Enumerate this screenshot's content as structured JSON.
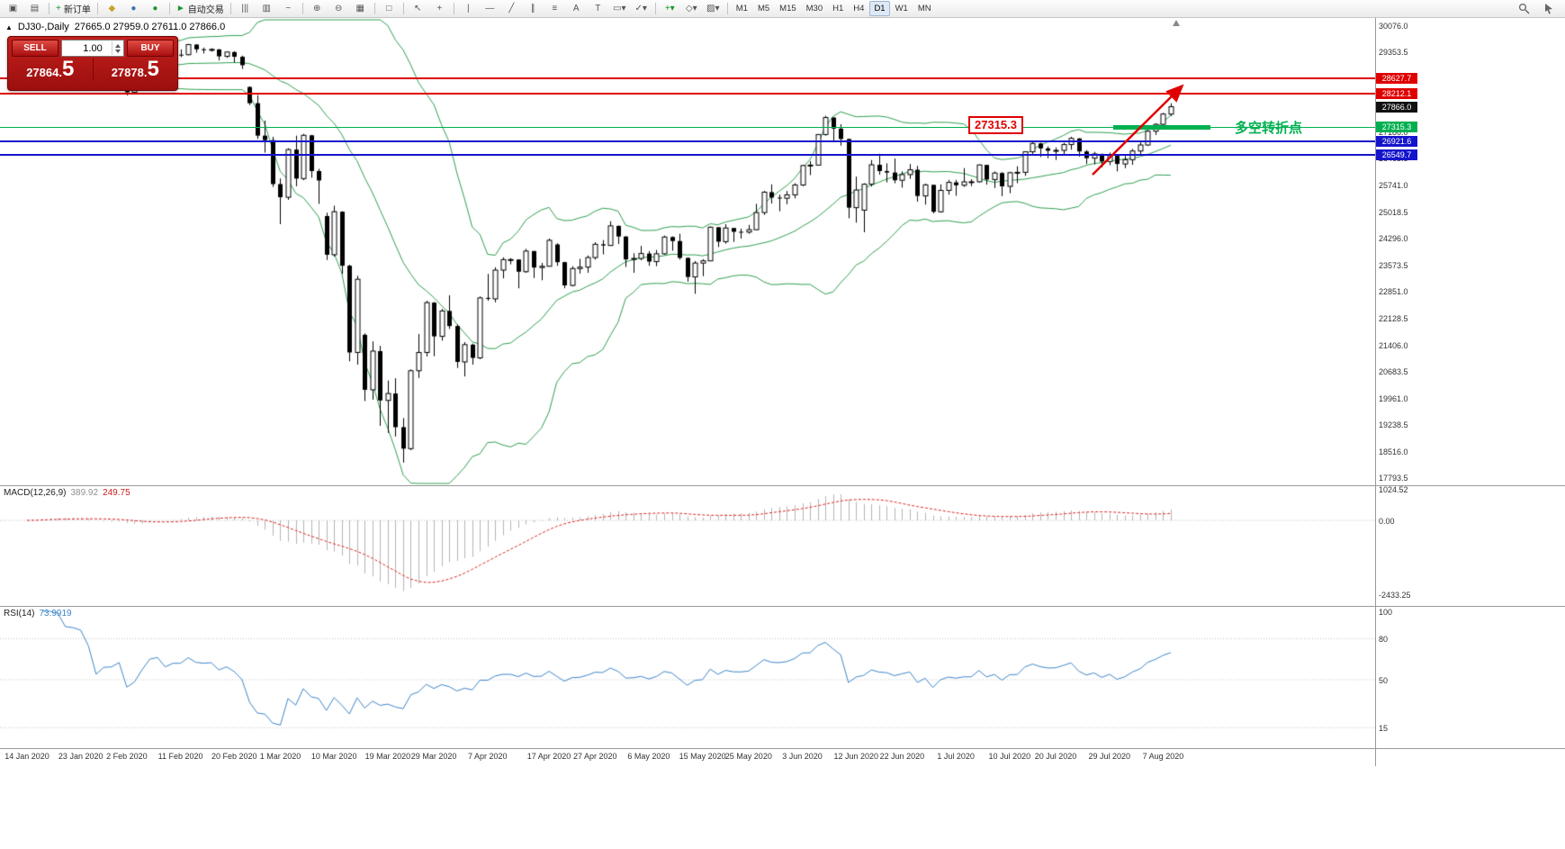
{
  "toolbar": {
    "buttons": [
      {
        "name": "new-chart-icon",
        "glyph": "▣"
      },
      {
        "name": "chart-profiles-icon",
        "glyph": "▤"
      },
      {
        "sep": true
      },
      {
        "name": "new-order-button",
        "glyph": "+",
        "label": "新订单",
        "color": "#18962b"
      },
      {
        "sep": true
      },
      {
        "name": "metaeditor-icon",
        "glyph": "◆",
        "color": "#c9a227"
      },
      {
        "name": "history-center-icon",
        "glyph": "●",
        "color": "#3b6fb5"
      },
      {
        "name": "community-icon",
        "glyph": "●",
        "color": "#18962b"
      },
      {
        "sep": true
      },
      {
        "name": "auto-trading-button",
        "glyph": "►",
        "label": "自动交易",
        "color": "#18962b"
      },
      {
        "sep": true
      },
      {
        "name": "bar-chart-icon",
        "glyph": "|||"
      },
      {
        "name": "candlestick-chart-icon",
        "glyph": "▥"
      },
      {
        "name": "line-chart-icon",
        "glyph": "~"
      },
      {
        "sep": true
      },
      {
        "name": "zoom-in-icon",
        "glyph": "⊕"
      },
      {
        "name": "zoom-out-icon",
        "glyph": "⊖"
      },
      {
        "name": "grid-icon",
        "glyph": "▦"
      },
      {
        "sep": true
      },
      {
        "name": "tile-windows-icon",
        "glyph": "□"
      },
      {
        "sep": true
      },
      {
        "name": "cursor-icon",
        "glyph": "↖"
      },
      {
        "name": "crosshair-icon",
        "glyph": "+"
      },
      {
        "sep": true
      },
      {
        "name": "vertical-line-icon",
        "glyph": "|"
      },
      {
        "name": "horizontal-line-icon",
        "glyph": "—"
      },
      {
        "name": "trendline-icon",
        "glyph": "╱"
      },
      {
        "name": "equidistant-channel-icon",
        "glyph": "∥"
      },
      {
        "name": "fibonacci-icon",
        "glyph": "≡"
      },
      {
        "name": "text-icon",
        "glyph": "A"
      },
      {
        "name": "text-label-icon",
        "glyph": "T"
      },
      {
        "name": "shapes-dropdown-icon",
        "glyph": "▭▾"
      },
      {
        "name": "arrows-dropdown-icon",
        "glyph": "✓▾"
      },
      {
        "sep": true
      },
      {
        "name": "indicators-dropdown-icon",
        "glyph": "+▾",
        "color": "#18962b"
      },
      {
        "name": "periods-dropdown-icon",
        "glyph": "◇▾"
      },
      {
        "name": "templates-dropdown-icon",
        "glyph": "▨▾"
      }
    ],
    "timeframes": [
      "M1",
      "M5",
      "M15",
      "M30",
      "H1",
      "H4",
      "D1",
      "W1",
      "MN"
    ],
    "active_timeframe": "D1"
  },
  "chart_header": {
    "collapse_arrow": "▲",
    "symbol_period": "DJ30-,Daily",
    "ohlc_text": "27665.0 27959.0 27611.0 27866.0"
  },
  "trade_panel": {
    "sell_label": "SELL",
    "buy_label": "BUY",
    "volume": "1.00",
    "sell_price_small": "27864.",
    "sell_price_big": "5",
    "buy_price_small": "27878.",
    "buy_price_big": "5"
  },
  "price_axis_labels": [
    "30076.0",
    "29353.5",
    "28631.0",
    "27908.5",
    "27186.0",
    "26463.5",
    "25741.0",
    "25018.5",
    "24296.0",
    "23573.5",
    "22851.0",
    "22128.5",
    "21406.0",
    "20683.5",
    "19961.0",
    "19238.5",
    "18516.0",
    "17793.5"
  ],
  "hlines": [
    {
      "price": 28627.7,
      "label": "28627.7",
      "color": "#e00000",
      "thickness": 2
    },
    {
      "price": 28212.1,
      "label": "28212.1",
      "color": "#e00000",
      "thickness": 2
    },
    {
      "price": 27866.0,
      "label": "27866.0",
      "color": "#111111",
      "thickness": 0
    },
    {
      "price": 27315.3,
      "label": "27315.3",
      "color": "#00b050",
      "thickness": 1
    },
    {
      "price": 26921.6,
      "label": "26921.6",
      "color": "#1515cc",
      "thickness": 2
    },
    {
      "price": 26549.7,
      "label": "26549.7",
      "color": "#1515cc",
      "thickness": 2
    }
  ],
  "pivot": {
    "label": "27315.3",
    "note": "多空转折点"
  },
  "macd": {
    "name": "MACD(12,26,9)",
    "value_main": "389.92",
    "value_signal": "249.75",
    "scale": [
      {
        "t": "1024.52",
        "v": 1024.52
      },
      {
        "t": "0.00",
        "v": 0
      },
      {
        "t": "-2433.25",
        "v": -2433.25
      }
    ]
  },
  "rsi": {
    "name": "RSI(14)",
    "value": "73.9919",
    "scale": [
      {
        "t": "100",
        "v": 100
      },
      {
        "t": "80",
        "v": 80
      },
      {
        "t": "50",
        "v": 50
      },
      {
        "t": "15",
        "v": 15
      }
    ],
    "levels": [
      80,
      50,
      15
    ]
  },
  "date_axis": [
    {
      "label": "14 Jan 2020",
      "idx": 0
    },
    {
      "label": "23 Jan 2020",
      "idx": 7
    },
    {
      "label": "2 Feb 2020",
      "idx": 13
    },
    {
      "label": "11 Feb 2020",
      "idx": 20
    },
    {
      "label": "20 Feb 2020",
      "idx": 27
    },
    {
      "label": "1 Mar 2020",
      "idx": 33
    },
    {
      "label": "10 Mar 2020",
      "idx": 40
    },
    {
      "label": "19 Mar 2020",
      "idx": 47
    },
    {
      "label": "29 Mar 2020",
      "idx": 53
    },
    {
      "label": "7 Apr 2020",
      "idx": 60
    },
    {
      "label": "17 Apr 2020",
      "idx": 68
    },
    {
      "label": "27 Apr 2020",
      "idx": 74
    },
    {
      "label": "6 May 2020",
      "idx": 81
    },
    {
      "label": "15 May 2020",
      "idx": 88
    },
    {
      "label": "25 May 2020",
      "idx": 94
    },
    {
      "label": "3 Jun 2020",
      "idx": 101
    },
    {
      "label": "12 Jun 2020",
      "idx": 108
    },
    {
      "label": "22 Jun 2020",
      "idx": 114
    },
    {
      "label": "1 Jul 2020",
      "idx": 121
    },
    {
      "label": "10 Jul 2020",
      "idx": 128
    },
    {
      "label": "20 Jul 2020",
      "idx": 134
    },
    {
      "label": "29 Jul 2020",
      "idx": 141
    },
    {
      "label": "7 Aug 2020",
      "idx": 148
    }
  ],
  "chart_data": {
    "type": "candlestick",
    "symbol": "DJ30-",
    "timeframe": "Daily",
    "y_axis_range": [
      17793.5,
      30076.0
    ],
    "last_bar": {
      "open": 27665.0,
      "high": 27959.0,
      "low": 27611.0,
      "close": 27866.0
    },
    "overlays": [
      {
        "name": "Bollinger Bands",
        "period": 20,
        "deviation": 2,
        "color": "#2e9e4f"
      }
    ],
    "indicators": [
      {
        "name": "MACD",
        "params": [
          12,
          26,
          9
        ],
        "values": [
          389.92,
          249.75
        ],
        "range": [
          -2433.25,
          1024.52
        ]
      },
      {
        "name": "RSI",
        "params": [
          14
        ],
        "value": 73.9919,
        "range": [
          0,
          100
        ]
      }
    ],
    "ohlc": [
      [
        28890,
        28985,
        28830,
        28940
      ],
      [
        28940,
        29070,
        28900,
        29030
      ],
      [
        29030,
        29320,
        29010,
        29297
      ],
      [
        29297,
        29380,
        29250,
        29348
      ],
      [
        29348,
        29370,
        29280,
        29330
      ],
      [
        29330,
        29340,
        29130,
        29196
      ],
      [
        29196,
        29250,
        29120,
        29186
      ],
      [
        29186,
        29230,
        28960,
        29160
      ],
      [
        29160,
        29190,
        28860,
        28990
      ],
      [
        28720,
        28750,
        28410,
        28536
      ],
      [
        28536,
        28780,
        28500,
        28723
      ],
      [
        28723,
        28850,
        28650,
        28734
      ],
      [
        28734,
        28890,
        28680,
        28859
      ],
      [
        28859,
        28870,
        28170,
        28256
      ],
      [
        28256,
        28580,
        28200,
        28400
      ],
      [
        28400,
        28860,
        28370,
        28808
      ],
      [
        28808,
        29310,
        28800,
        29291
      ],
      [
        29291,
        29410,
        29230,
        29380
      ],
      [
        29380,
        29390,
        29060,
        29103
      ],
      [
        29103,
        29290,
        29080,
        29277
      ],
      [
        29277,
        29420,
        29210,
        29276
      ],
      [
        29276,
        29568,
        29260,
        29551
      ],
      [
        29551,
        29560,
        29330,
        29423
      ],
      [
        29423,
        29470,
        29310,
        29398
      ],
      [
        29398,
        29450,
        29360,
        29420
      ],
      [
        29420,
        29430,
        29120,
        29232
      ],
      [
        29232,
        29360,
        29190,
        29348
      ],
      [
        29348,
        29370,
        29060,
        29220
      ],
      [
        29220,
        29250,
        28890,
        28992
      ],
      [
        28400,
        28420,
        27910,
        27961
      ],
      [
        27961,
        28180,
        26990,
        27081
      ],
      [
        27081,
        27490,
        26620,
        26958
      ],
      [
        26958,
        27050,
        25690,
        25767
      ],
      [
        25767,
        25920,
        24680,
        25410
      ],
      [
        25410,
        26740,
        25340,
        26703
      ],
      [
        26703,
        27080,
        25710,
        25917
      ],
      [
        25917,
        27130,
        25870,
        27090
      ],
      [
        27090,
        27100,
        25940,
        26121
      ],
      [
        26121,
        26180,
        25230,
        25865
      ],
      [
        24900,
        24990,
        23710,
        23851
      ],
      [
        23851,
        25180,
        23800,
        25018
      ],
      [
        25018,
        25030,
        23330,
        23553
      ],
      [
        23553,
        23580,
        20960,
        21201
      ],
      [
        21201,
        23280,
        20870,
        23186
      ],
      [
        21680,
        21720,
        19880,
        20188
      ],
      [
        20188,
        21500,
        19920,
        21237
      ],
      [
        21237,
        21380,
        19210,
        19899
      ],
      [
        19899,
        20440,
        19020,
        20087
      ],
      [
        20087,
        20500,
        18920,
        19174
      ],
      [
        19174,
        19420,
        18213,
        18592
      ],
      [
        18592,
        20740,
        18550,
        20705
      ],
      [
        20705,
        21700,
        20510,
        21200
      ],
      [
        21200,
        22600,
        21090,
        22552
      ],
      [
        22552,
        22570,
        21100,
        21637
      ],
      [
        21637,
        22380,
        21520,
        22327
      ],
      [
        22327,
        22750,
        21840,
        21917
      ],
      [
        21917,
        21960,
        20780,
        20944
      ],
      [
        20944,
        21480,
        20550,
        21413
      ],
      [
        21413,
        21440,
        20870,
        21053
      ],
      [
        21053,
        22720,
        21020,
        22680
      ],
      [
        22680,
        23330,
        22600,
        22654
      ],
      [
        22654,
        23510,
        22560,
        23434
      ],
      [
        23434,
        23780,
        23210,
        23719
      ],
      [
        23719,
        23760,
        23590,
        23720
      ],
      [
        23720,
        23730,
        22940,
        23391
      ],
      [
        23391,
        24010,
        23360,
        23950
      ],
      [
        23950,
        23960,
        23220,
        23504
      ],
      [
        23504,
        23630,
        23160,
        23538
      ],
      [
        23538,
        24290,
        23530,
        24242
      ],
      [
        24130,
        24160,
        23550,
        23650
      ],
      [
        23650,
        23660,
        22940,
        23019
      ],
      [
        23019,
        23540,
        22990,
        23476
      ],
      [
        23476,
        23740,
        23340,
        23515
      ],
      [
        23515,
        23830,
        23360,
        23775
      ],
      [
        23775,
        24190,
        23720,
        24134
      ],
      [
        24134,
        24250,
        23860,
        24102
      ],
      [
        24102,
        24760,
        24090,
        24634
      ],
      [
        24634,
        24640,
        24140,
        24346
      ],
      [
        24346,
        24350,
        23520,
        23724
      ],
      [
        23724,
        23890,
        23360,
        23750
      ],
      [
        23750,
        24090,
        23700,
        23883
      ],
      [
        23883,
        23950,
        23550,
        23665
      ],
      [
        23665,
        23980,
        23540,
        23876
      ],
      [
        23876,
        24370,
        23850,
        24331
      ],
      [
        24331,
        24350,
        23960,
        24222
      ],
      [
        24222,
        24420,
        23720,
        23765
      ],
      [
        23765,
        23780,
        23120,
        23248
      ],
      [
        23248,
        23680,
        22790,
        23625
      ],
      [
        23625,
        23730,
        23270,
        23685
      ],
      [
        23685,
        24620,
        23680,
        24597
      ],
      [
        24597,
        24600,
        24060,
        24206
      ],
      [
        24206,
        24680,
        24150,
        24576
      ],
      [
        24576,
        24580,
        24200,
        24474
      ],
      [
        24474,
        24560,
        24290,
        24465
      ],
      [
        24465,
        24660,
        24420,
        24530
      ],
      [
        24530,
        25230,
        24520,
        24995
      ],
      [
        24995,
        25580,
        24930,
        25548
      ],
      [
        25548,
        25760,
        25240,
        25401
      ],
      [
        25401,
        25480,
        25030,
        25383
      ],
      [
        25383,
        25580,
        25220,
        25475
      ],
      [
        25475,
        25790,
        25380,
        25743
      ],
      [
        25743,
        26290,
        25710,
        26270
      ],
      [
        26270,
        26390,
        26010,
        26282
      ],
      [
        26282,
        27120,
        26280,
        27111
      ],
      [
        27111,
        27620,
        27080,
        27572
      ],
      [
        27572,
        27580,
        26910,
        27273
      ],
      [
        27273,
        27390,
        26810,
        26990
      ],
      [
        26990,
        27000,
        24840,
        25128
      ],
      [
        25128,
        25970,
        24720,
        25606
      ],
      [
        25060,
        25790,
        24460,
        25763
      ],
      [
        25763,
        26420,
        25700,
        26290
      ],
      [
        26290,
        26590,
        26020,
        26120
      ],
      [
        26120,
        26330,
        25810,
        26080
      ],
      [
        26080,
        26460,
        25790,
        25871
      ],
      [
        25871,
        26110,
        25670,
        26025
      ],
      [
        26025,
        26310,
        25910,
        26156
      ],
      [
        26156,
        26260,
        25290,
        25445
      ],
      [
        25445,
        25780,
        25210,
        25746
      ],
      [
        25746,
        25750,
        24970,
        25016
      ],
      [
        25016,
        25760,
        24990,
        25596
      ],
      [
        25596,
        25880,
        25480,
        25813
      ],
      [
        25813,
        25880,
        25450,
        25735
      ],
      [
        25735,
        26200,
        25690,
        25827
      ],
      [
        25827,
        25900,
        25710,
        25830
      ],
      [
        25830,
        26300,
        25810,
        26287
      ],
      [
        26287,
        26290,
        25750,
        25890
      ],
      [
        25890,
        26110,
        25660,
        26067
      ],
      [
        26067,
        26090,
        25440,
        25706
      ],
      [
        25706,
        26100,
        25520,
        26075
      ],
      [
        26075,
        26250,
        25790,
        26086
      ],
      [
        26086,
        26660,
        25990,
        26643
      ],
      [
        26643,
        26920,
        26580,
        26870
      ],
      [
        26870,
        26890,
        26500,
        26735
      ],
      [
        26735,
        26790,
        26470,
        26672
      ],
      [
        26672,
        26760,
        26420,
        26681
      ],
      [
        26681,
        26890,
        26550,
        26840
      ],
      [
        26840,
        27050,
        26700,
        27006
      ],
      [
        27006,
        27010,
        26510,
        26652
      ],
      [
        26652,
        26690,
        26310,
        26470
      ],
      [
        26470,
        26640,
        26300,
        26584
      ],
      [
        26584,
        26590,
        26220,
        26379
      ],
      [
        26379,
        26620,
        26280,
        26539
      ],
      [
        26539,
        26550,
        26110,
        26313
      ],
      [
        26313,
        26540,
        26200,
        26428
      ],
      [
        26428,
        26720,
        26290,
        26664
      ],
      [
        26664,
        26940,
        26570,
        26828
      ],
      [
        26828,
        27230,
        26800,
        27201
      ],
      [
        27201,
        27420,
        27100,
        27386
      ],
      [
        27386,
        27700,
        27330,
        27666
      ],
      [
        27665,
        27959,
        27611,
        27866
      ]
    ]
  }
}
